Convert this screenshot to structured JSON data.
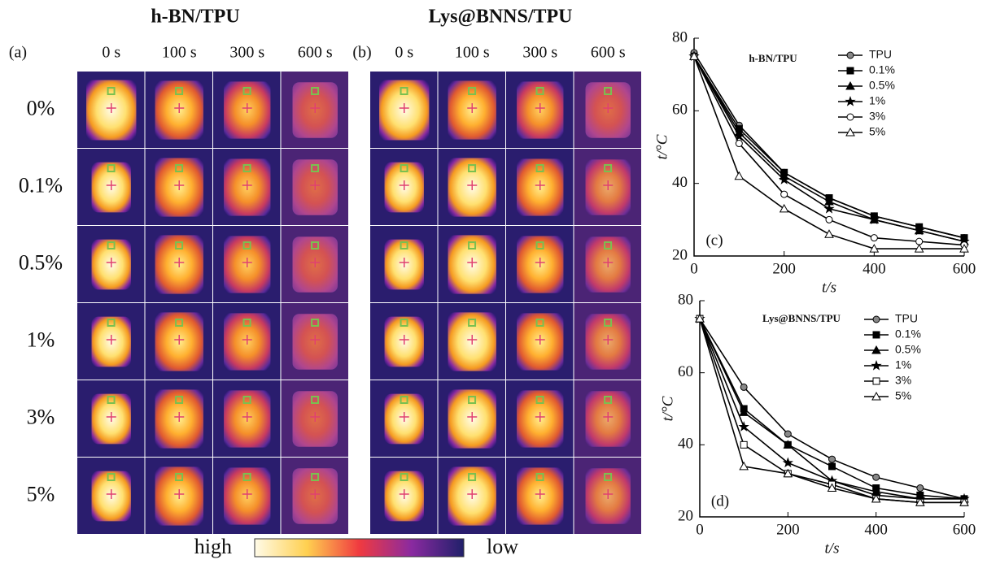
{
  "figure": {
    "panel_a": {
      "label": "(a)",
      "title": "h-BN/TPU"
    },
    "panel_b": {
      "label": "(b)",
      "title": "Lys@BNNS/TPU"
    },
    "times": [
      "0 s",
      "100 s",
      "300 s",
      "600 s"
    ],
    "contents": [
      "0%",
      "0.1%",
      "0.5%",
      "1%",
      "3%",
      "5%"
    ],
    "colorbar": {
      "high": "high",
      "low": "low"
    }
  },
  "chart_data": [
    {
      "type": "line",
      "panel_label": "(c)",
      "title": "h-BN/TPU",
      "x_label": "t/s",
      "y_label": "t/°C",
      "x": [
        0,
        100,
        200,
        300,
        400,
        500,
        600
      ],
      "xlim": [
        0,
        600
      ],
      "xticks": [
        0,
        200,
        400,
        600
      ],
      "ylim": [
        20,
        80
      ],
      "yticks": [
        20,
        40,
        60,
        80
      ],
      "legend": "upper right",
      "series": [
        {
          "name": "TPU",
          "marker": "circle",
          "color": "#888888",
          "values": [
            76,
            56,
            43,
            36,
            31,
            28,
            25
          ]
        },
        {
          "name": "0.1%",
          "marker": "square",
          "color": "#000000",
          "values": [
            75,
            55,
            43,
            36,
            31,
            28,
            25
          ]
        },
        {
          "name": "0.5%",
          "marker": "triangle",
          "color": "#000000",
          "values": [
            75,
            54,
            42,
            35,
            30,
            27,
            24
          ]
        },
        {
          "name": "1%",
          "marker": "star",
          "color": "#000000",
          "values": [
            75,
            53,
            41,
            33,
            30,
            27,
            24
          ]
        },
        {
          "name": "3%",
          "marker": "circle",
          "color": "#ffffff",
          "values": [
            75,
            51,
            37,
            30,
            25,
            24,
            23
          ]
        },
        {
          "name": "5%",
          "marker": "triangle",
          "color": "#ffffff",
          "values": [
            75,
            42,
            33,
            26,
            22,
            22,
            22
          ]
        }
      ]
    },
    {
      "type": "line",
      "panel_label": "(d)",
      "title": "Lys@BNNS/TPU",
      "x_label": "t/s",
      "y_label": "t/°C",
      "x": [
        0,
        100,
        200,
        300,
        400,
        500,
        600
      ],
      "xlim": [
        0,
        600
      ],
      "xticks": [
        0,
        200,
        400,
        600
      ],
      "ylim": [
        20,
        80
      ],
      "yticks": [
        20,
        40,
        60,
        80
      ],
      "legend": "upper right",
      "series": [
        {
          "name": "TPU",
          "marker": "circle",
          "color": "#888888",
          "values": [
            75,
            56,
            43,
            36,
            31,
            28,
            25
          ]
        },
        {
          "name": "0.1%",
          "marker": "square",
          "color": "#000000",
          "values": [
            75,
            50,
            40,
            34,
            28,
            26,
            25
          ]
        },
        {
          "name": "0.5%",
          "marker": "triangle",
          "color": "#000000",
          "values": [
            75,
            49,
            40,
            30,
            27,
            25,
            25
          ]
        },
        {
          "name": "1%",
          "marker": "star",
          "color": "#000000",
          "values": [
            75,
            45,
            35,
            30,
            26,
            25,
            25
          ]
        },
        {
          "name": "3%",
          "marker": "square",
          "color": "#ffffff",
          "values": [
            75,
            40,
            32,
            29,
            25,
            24,
            24
          ]
        },
        {
          "name": "5%",
          "marker": "triangle",
          "color": "#ffffff",
          "values": [
            75,
            34,
            32,
            28,
            25,
            24,
            24
          ]
        }
      ]
    }
  ]
}
